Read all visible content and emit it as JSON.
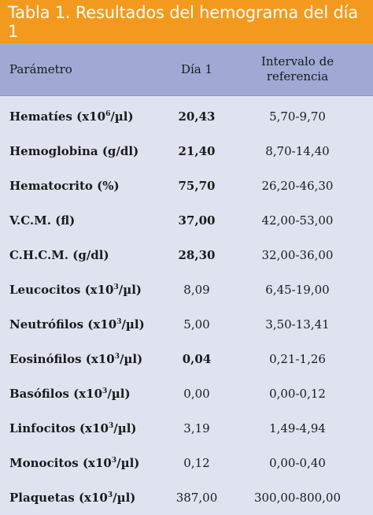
{
  "title": "Tabla 1. Resultados del hemograma del día 1",
  "columns": {
    "param": "Parámetro",
    "day1": "Día 1",
    "range_line1": "Intervalo de",
    "range_line2": "referencia"
  },
  "rows": [
    {
      "name": "Hematíes (x10",
      "exp": "6",
      "unit": "/µl)",
      "value": "20,43",
      "bold_name": true,
      "bold_value": true,
      "range": "5,70-9,70"
    },
    {
      "name": "Hemoglobina (g/dl)",
      "exp": "",
      "unit": "",
      "value": "21,40",
      "bold_name": true,
      "bold_value": true,
      "range": "8,70-14,40"
    },
    {
      "name": "Hematocrito (%)",
      "exp": "",
      "unit": "",
      "value": "75,70",
      "bold_name": true,
      "bold_value": true,
      "range": "26,20-46,30"
    },
    {
      "name": "V.C.M. (fl)",
      "exp": "",
      "unit": "",
      "value": "37,00",
      "bold_name": true,
      "bold_value": true,
      "range": "42,00-53,00"
    },
    {
      "name": "C.H.C.M. (g/dl)",
      "exp": "",
      "unit": "",
      "value": "28,30",
      "bold_name": true,
      "bold_value": true,
      "range": "32,00-36,00"
    },
    {
      "name": "Leucocitos (x10",
      "exp": "3",
      "unit": "/µl)",
      "value": "8,09",
      "bold_name": true,
      "bold_value": false,
      "range": "6,45-19,00"
    },
    {
      "name": "Neutrófilos (x10",
      "exp": "3",
      "unit": "/µl)",
      "value": "5,00",
      "bold_name": true,
      "bold_value": false,
      "range": "3,50-13,41"
    },
    {
      "name": "Eosinófilos (x10",
      "exp": "3",
      "unit": "/µl)",
      "value": "0,04",
      "bold_name": true,
      "bold_value": true,
      "range": "0,21-1,26"
    },
    {
      "name": "Basófilos (x10",
      "exp": "3",
      "unit": "/µl)",
      "value": "0,00",
      "bold_name": true,
      "bold_value": false,
      "range": "0,00-0,12"
    },
    {
      "name": "Linfocitos (x10",
      "exp": "3",
      "unit": "/µl)",
      "value": "3,19",
      "bold_name": true,
      "bold_value": false,
      "range": "1,49-4,94"
    },
    {
      "name": "Monocitos (x10",
      "exp": "3",
      "unit": "/µl)",
      "value": "0,12",
      "bold_name": true,
      "bold_value": false,
      "range": "0,00-0,40"
    },
    {
      "name": "Plaquetas (x10",
      "exp": "3",
      "unit": "/µl)",
      "value": "387,00",
      "bold_name": true,
      "bold_value": false,
      "range": "300,00-800,00"
    }
  ]
}
